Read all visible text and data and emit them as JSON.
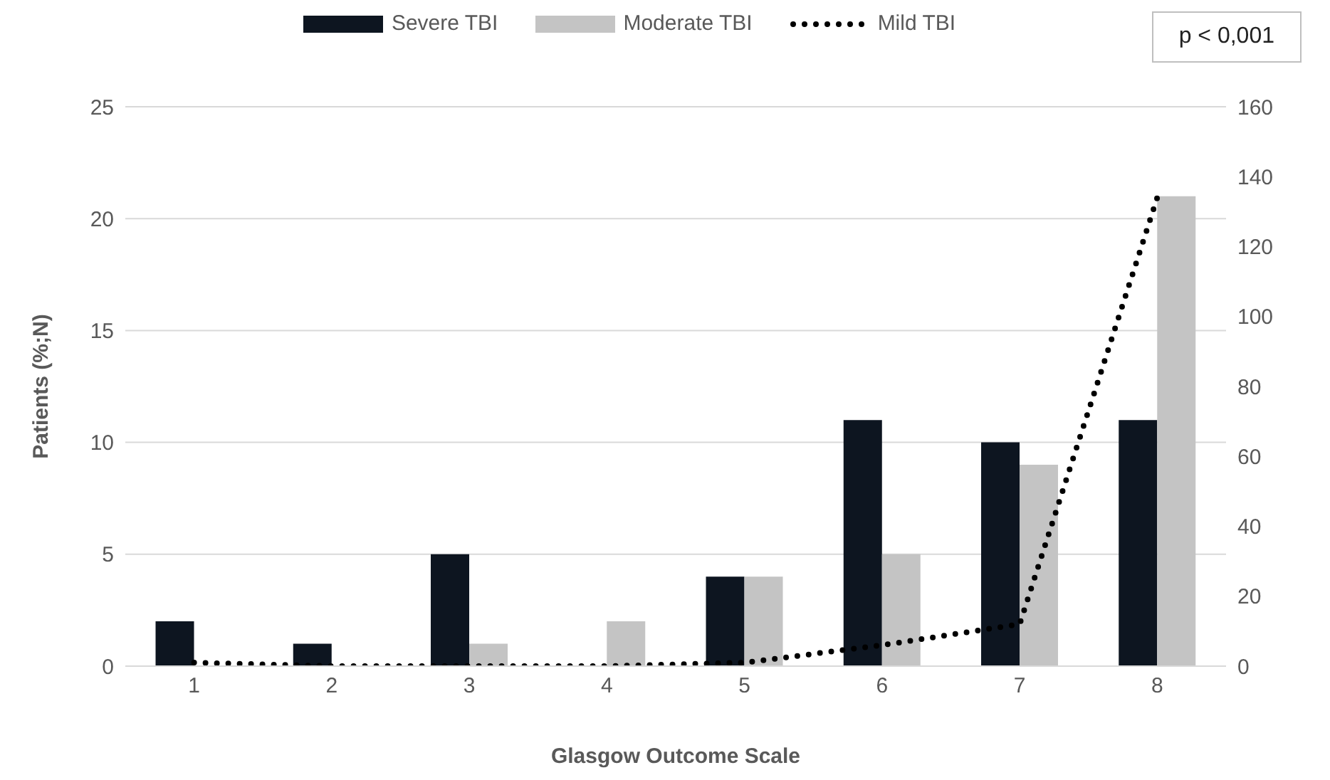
{
  "chart_data": {
    "type": "bar",
    "categories": [
      "1",
      "2",
      "3",
      "4",
      "5",
      "6",
      "7",
      "8"
    ],
    "series": [
      {
        "name": "Severe TBI",
        "color": "#0d1520",
        "values": [
          2,
          1,
          5,
          0,
          4,
          11,
          10,
          11
        ]
      },
      {
        "name": "Moderate TBI",
        "color": "#c4c4c4",
        "values": [
          0,
          0,
          1,
          2,
          4,
          5,
          9,
          21
        ]
      },
      {
        "name": "Mild TBI",
        "type": "line",
        "axis": "y2",
        "color": "#000000",
        "line_style": "dotted",
        "values": [
          1,
          0,
          0,
          0,
          1,
          6,
          12,
          134
        ]
      }
    ],
    "xlabel": "Glasgow Outcome Scale",
    "ylabel": "Patients (%;N)",
    "ylim": [
      0,
      25
    ],
    "yticks": [
      0,
      5,
      10,
      15,
      20,
      25
    ],
    "y2lim": [
      0,
      160
    ],
    "y2ticks": [
      0,
      20,
      40,
      60,
      80,
      100,
      120,
      140,
      160
    ],
    "grid": "y",
    "legend": "top",
    "marker": "none",
    "annotations": [
      "p < 0,001"
    ]
  }
}
